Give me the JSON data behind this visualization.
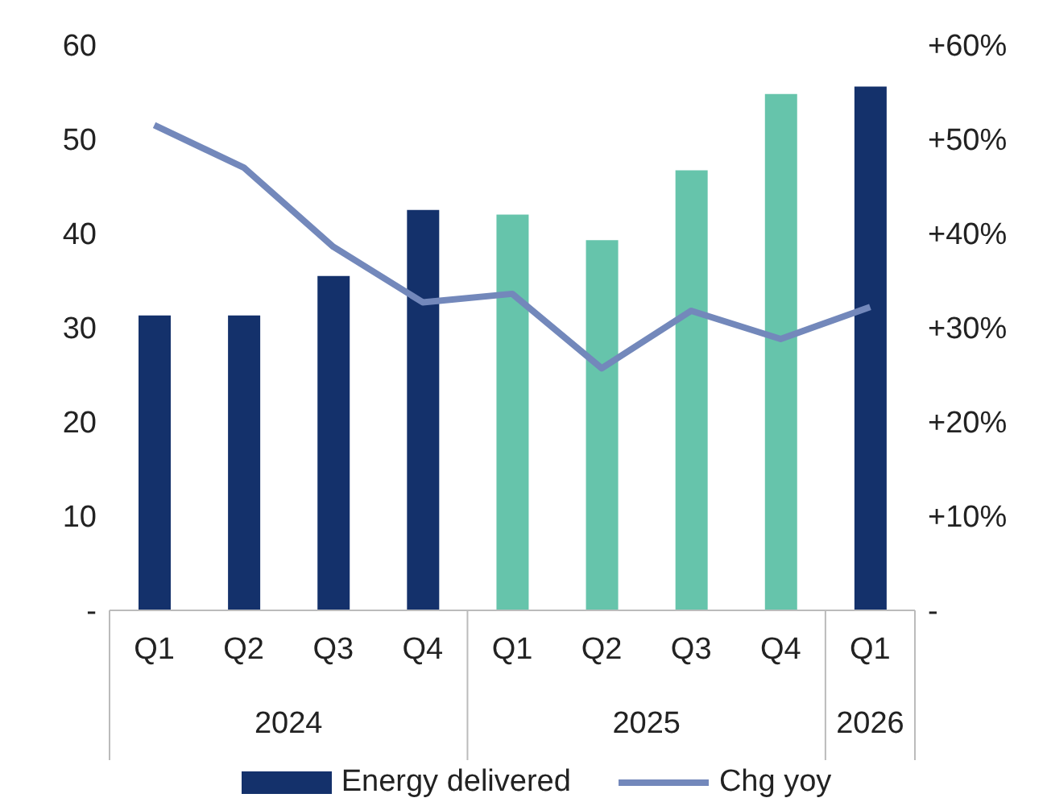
{
  "chart_data": {
    "type": "bar",
    "categories": [
      "Q1",
      "Q2",
      "Q3",
      "Q4",
      "Q1",
      "Q2",
      "Q3",
      "Q4",
      "Q1"
    ],
    "annotations": [
      "2024",
      "2025",
      "2026"
    ],
    "series": [
      {
        "name": "Energy delivered",
        "color": "#14316b",
        "colors": [
          "#14316b",
          "#14316b",
          "#14316b",
          "#14316b",
          "#66c4ab",
          "#66c4ab",
          "#66c4ab",
          "#66c4ab",
          "#14316b"
        ],
        "values": [
          31.3,
          31.3,
          35.5,
          42.5,
          42.0,
          39.3,
          46.7,
          54.8,
          55.6
        ]
      },
      {
        "name": "Chg yoy",
        "type": "line",
        "axis": "y2",
        "color": "#7388bb",
        "values": [
          51.5,
          47.0,
          38.6,
          32.7,
          33.6,
          25.7,
          31.8,
          28.8,
          32.2
        ]
      }
    ],
    "ylim": [
      0,
      60
    ],
    "yticks": [
      {
        "value": 0,
        "label": "-"
      },
      10,
      20,
      30,
      40,
      50,
      60
    ],
    "y2lim": [
      0,
      60
    ],
    "y2ticks": [
      {
        "value": 0,
        "label": "-"
      },
      {
        "value": 10,
        "label": "+10%"
      },
      {
        "value": 20,
        "label": "+20%"
      },
      {
        "value": 30,
        "label": "+30%"
      },
      {
        "value": 40,
        "label": "+40%"
      },
      {
        "value": 50,
        "label": "+50%"
      },
      {
        "value": 60,
        "label": "+60%"
      }
    ],
    "grid": false,
    "legend": "bottom",
    "marker": "none",
    "line_style": "solid"
  }
}
